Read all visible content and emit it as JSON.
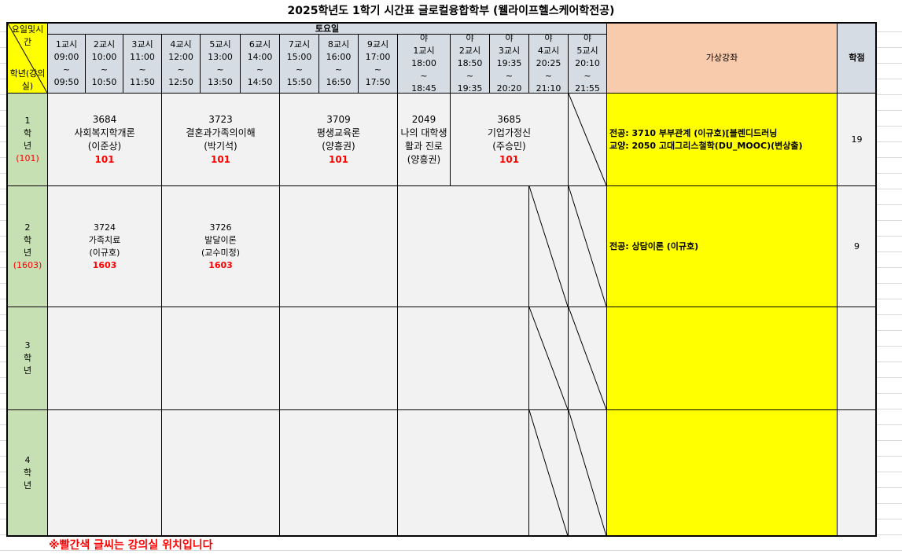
{
  "title": "2025학년도 1학기 시간표 글로컬융합학부 (웰라이프헬스케어학전공)",
  "corner": {
    "top": "요일및시간",
    "bottom": "학년(강의실)"
  },
  "day": "토요일",
  "periods": [
    {
      "label": "1교시",
      "start": "09:00",
      "end": "09:50"
    },
    {
      "label": "2교시",
      "start": "10:00",
      "end": "10:50"
    },
    {
      "label": "3교시",
      "start": "11:00",
      "end": "11:50"
    },
    {
      "label": "4교시",
      "start": "12:00",
      "end": "12:50"
    },
    {
      "label": "5교시",
      "start": "13:00",
      "end": "13:50"
    },
    {
      "label": "6교시",
      "start": "14:00",
      "end": "14:50"
    },
    {
      "label": "7교시",
      "start": "15:00",
      "end": "15:50"
    },
    {
      "label": "8교시",
      "start": "16:00",
      "end": "16:50"
    },
    {
      "label": "9교시",
      "start": "17:00",
      "end": "17:50"
    },
    {
      "prefix": "야",
      "label": "1교시",
      "start": "18:00",
      "end": "18:45"
    },
    {
      "prefix": "야",
      "label": "2교시",
      "start": "18:50",
      "end": "19:35"
    },
    {
      "prefix": "야",
      "label": "3교시",
      "start": "19:35",
      "end": "20:20"
    },
    {
      "prefix": "야",
      "label": "4교시",
      "start": "20:25",
      "end": "21:10"
    },
    {
      "prefix": "야",
      "label": "5교시",
      "start": "20:10",
      "end": "21:55"
    }
  ],
  "tilde": "~",
  "virtual_header": "가상강좌",
  "credits_header": "학점",
  "grades": [
    {
      "num": "1",
      "hak": "학",
      "nyeon": "년",
      "room": "(101)",
      "credits": "19",
      "virtual": [
        "전공: 3710 부부관계 (이규호)[블렌디드러닝",
        "교양: 2050 고대그리스철학(DU_MOOC)(변상출)"
      ],
      "courses": [
        {
          "code": "3684",
          "name": "사회복지학개론",
          "prof": "(이준상)",
          "room": "101"
        },
        {
          "code": "3723",
          "name": "결혼과가족의이해",
          "prof": "(박기석)",
          "room": "101"
        },
        {
          "code": "3709",
          "name": "평생교육론",
          "prof": "(양흥권)",
          "room": "101"
        },
        {
          "code": "2049",
          "name": "나의 대학생활과 진로",
          "prof": "(양흥권)",
          "room": ""
        },
        {
          "code": "3685",
          "name": "기업가정신",
          "prof": "(주승민)",
          "room": "101"
        }
      ]
    },
    {
      "num": "2",
      "hak": "학",
      "nyeon": "년",
      "room": "(1603)",
      "credits": "9",
      "virtual": [
        "전공: 상담이론 (이규호)"
      ],
      "courses": [
        {
          "code": "3724",
          "name": "가족치료",
          "prof": "(이규호)",
          "room": "1603"
        },
        {
          "code": "3726",
          "name": "발달이론",
          "prof": "(교수미정)",
          "room": "1603"
        }
      ]
    },
    {
      "num": "3",
      "hak": "학",
      "nyeon": "년",
      "room": "",
      "credits": "",
      "virtual": [],
      "courses": []
    },
    {
      "num": "4",
      "hak": "학",
      "nyeon": "년",
      "room": "",
      "credits": "",
      "virtual": [],
      "courses": []
    }
  ],
  "footnote": "※빨간색 글씨는 강의실 위치입니다",
  "colors": {
    "header": "#d6dce4",
    "corner": "#ffff00",
    "grade": "#c6e0b4",
    "virtual_header": "#f8cbad",
    "virtual": "#ffff00",
    "room": "#ff0000"
  }
}
